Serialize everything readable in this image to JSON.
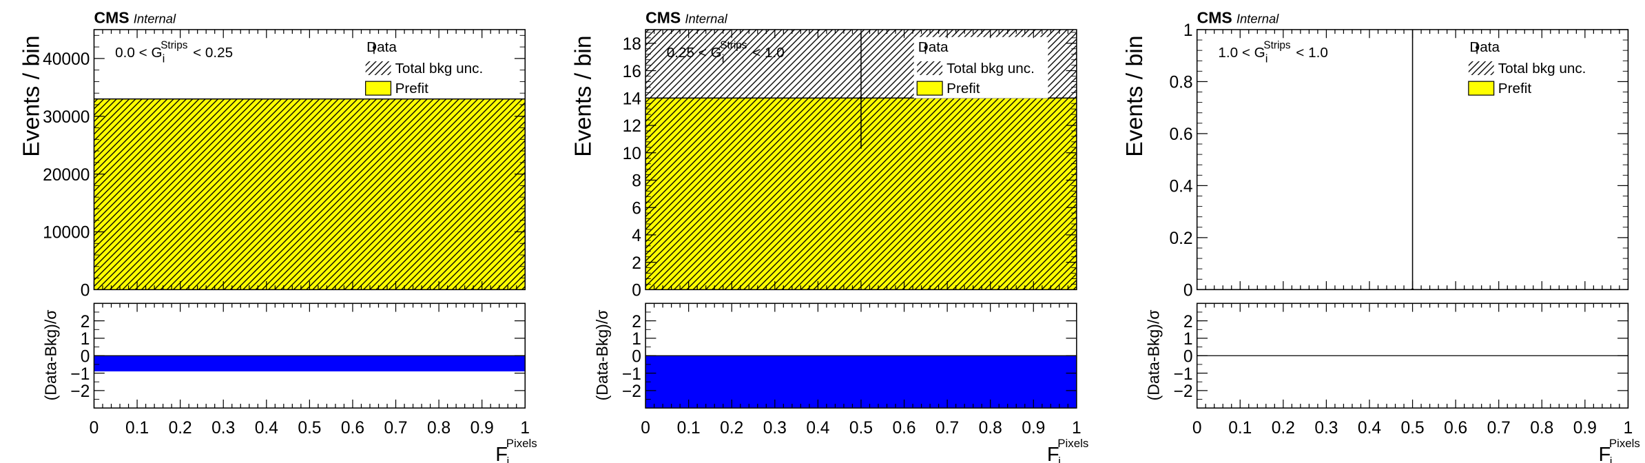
{
  "header": {
    "experiment": "CMS",
    "status": "Internal"
  },
  "legend": {
    "data": "Data",
    "unc": "Total bkg unc.",
    "prefit": "Prefit"
  },
  "axis": {
    "xtitle": "F",
    "xtitle_sub": "i",
    "xtitle_sup": "Pixels",
    "ytitle": "Events / bin",
    "ratio_title": "(Data-Bkg)/σ",
    "x_ticks": [
      "0",
      "0.1",
      "0.2",
      "0.3",
      "0.4",
      "0.5",
      "0.6",
      "0.7",
      "0.8",
      "0.9",
      "1"
    ],
    "ratio_ticks": [
      "2",
      "1",
      "0",
      "−1",
      "−2"
    ]
  },
  "colors": {
    "prefit": "#ffff00",
    "ratio_bar": "#0000ff",
    "hatch": "#000000"
  },
  "chart_data": [
    {
      "type": "bar",
      "region": {
        "left": "0.0 < G",
        "sub": "i",
        "sup": "Strips",
        "right": "< 0.25"
      },
      "x": [
        0.5
      ],
      "bin_edges": [
        0,
        1
      ],
      "prefit": [
        33000
      ],
      "unc_band": [
        0,
        33000
      ],
      "data": [],
      "ylim": [
        0,
        45000
      ],
      "y_ticks": [
        "0",
        "10000",
        "20000",
        "30000",
        "40000"
      ],
      "ratio": [
        -0.9
      ],
      "ratio_ylim": [
        -3,
        3
      ],
      "legend_position": "top-right"
    },
    {
      "type": "bar",
      "region": {
        "left": "0.25 < G",
        "sub": "i",
        "sup": "Strips",
        "right": "< 1.0"
      },
      "x": [
        0.5
      ],
      "bin_edges": [
        0,
        1
      ],
      "prefit": [
        14
      ],
      "unc_band": [
        0,
        19
      ],
      "data": [
        {
          "x": 0.5,
          "y": 14,
          "y_err_low": 3.7,
          "y_err_high": 4.8
        }
      ],
      "ylim": [
        0,
        19
      ],
      "y_ticks": [
        "0",
        "2",
        "4",
        "6",
        "8",
        "10",
        "12",
        "14",
        "16",
        "18"
      ],
      "ratio": [
        -3
      ],
      "ratio_ylim": [
        -3,
        3
      ],
      "legend_position": "top-right"
    },
    {
      "type": "bar",
      "region": {
        "left": "1.0 < G",
        "sub": "i",
        "sup": "Strips",
        "right": "< 1.0"
      },
      "x": [
        0.5
      ],
      "bin_edges": [
        0,
        1
      ],
      "prefit": [
        0
      ],
      "unc_band": [
        0,
        0
      ],
      "data": [
        {
          "x": 0.5,
          "y": 0,
          "y_err_low": 0,
          "y_err_high": 1
        }
      ],
      "ylim": [
        0,
        1
      ],
      "y_ticks": [
        "0",
        "0.2",
        "0.4",
        "0.6",
        "0.8",
        "1"
      ],
      "ratio": [
        0
      ],
      "ratio_ylim": [
        -3,
        3
      ],
      "legend_position": "top-right"
    }
  ]
}
